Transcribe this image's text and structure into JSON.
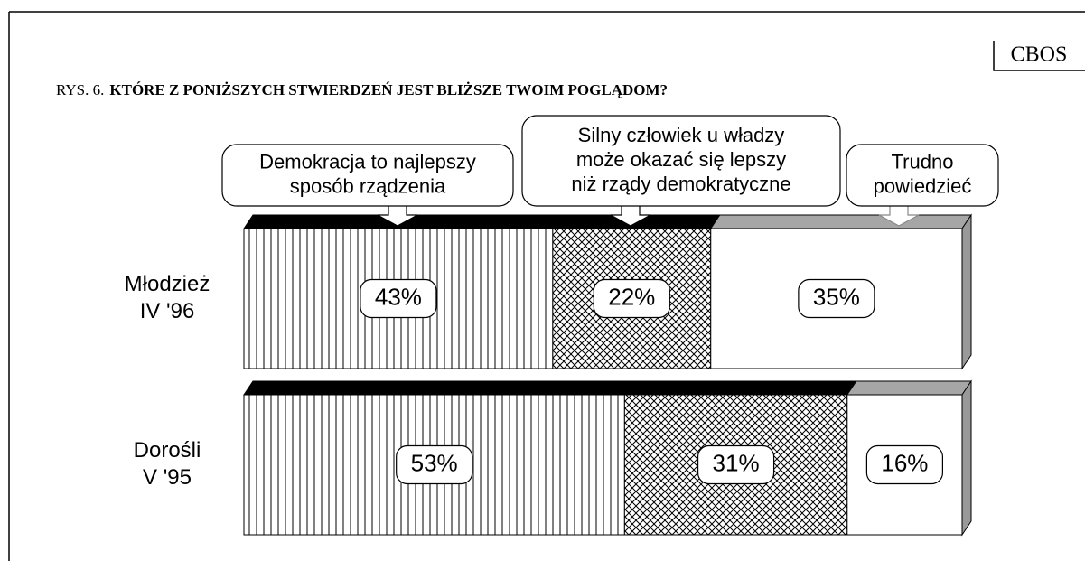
{
  "chart_data": {
    "type": "stacked_bar_3d",
    "source": "CBOS",
    "title_prefix": "RYS. 6.",
    "title": "KTÓRE Z PONIŻSZYCH STWIERDZEŃ JEST BLIŻSZE TWOIM POGLĄDOM?",
    "categories": [
      [
        "Młodzież",
        "IV '96"
      ],
      [
        "Dorośli",
        "V '95"
      ]
    ],
    "series": [
      {
        "name": [
          "Demokracja to najlepszy",
          "sposób rządzenia"
        ],
        "color": "#000000",
        "values": [
          43,
          53
        ],
        "value_labels": [
          "43%",
          "53%"
        ]
      },
      {
        "name": [
          "Silny człowiek u władzy",
          "może okazać się lepszy",
          "niż rządy demokratyczne"
        ],
        "color": "#000000",
        "values": [
          22,
          31
        ],
        "value_labels": [
          "22%",
          "31%"
        ]
      },
      {
        "name": [
          "Trudno",
          "powiedzieć"
        ],
        "color": "#a6a6a6",
        "values": [
          35,
          16
        ],
        "value_labels": [
          "35%",
          "16%"
        ]
      }
    ],
    "xlim": [
      0,
      100
    ]
  }
}
